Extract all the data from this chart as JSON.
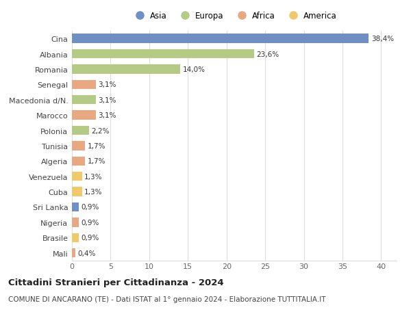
{
  "categories": [
    "Mali",
    "Brasile",
    "Nigeria",
    "Sri Lanka",
    "Cuba",
    "Venezuela",
    "Algeria",
    "Tunisia",
    "Polonia",
    "Marocco",
    "Macedonia d/N.",
    "Senegal",
    "Romania",
    "Albania",
    "Cina"
  ],
  "values": [
    0.4,
    0.9,
    0.9,
    0.9,
    1.3,
    1.3,
    1.7,
    1.7,
    2.2,
    3.1,
    3.1,
    3.1,
    14.0,
    23.6,
    38.4
  ],
  "labels": [
    "0,4%",
    "0,9%",
    "0,9%",
    "0,9%",
    "1,3%",
    "1,3%",
    "1,7%",
    "1,7%",
    "2,2%",
    "3,1%",
    "3,1%",
    "3,1%",
    "14,0%",
    "23,6%",
    "38,4%"
  ],
  "colors": [
    "#e8a882",
    "#f0c96a",
    "#e8a882",
    "#6f8fc7",
    "#f0c96a",
    "#f0c96a",
    "#e8a882",
    "#e8a882",
    "#b5cb85",
    "#e8a882",
    "#b5cb85",
    "#e8a882",
    "#b5cb85",
    "#b5cb85",
    "#6f8fc7"
  ],
  "continent": [
    "Africa",
    "America",
    "Africa",
    "Asia",
    "America",
    "America",
    "Africa",
    "Africa",
    "Europa",
    "Africa",
    "Europa",
    "Africa",
    "Europa",
    "Europa",
    "Asia"
  ],
  "legend": [
    {
      "label": "Asia",
      "color": "#6f8fc7"
    },
    {
      "label": "Europa",
      "color": "#b5cb85"
    },
    {
      "label": "Africa",
      "color": "#e8a882"
    },
    {
      "label": "America",
      "color": "#f0c96a"
    }
  ],
  "title": "Cittadini Stranieri per Cittadinanza - 2024",
  "subtitle": "COMUNE DI ANCARANO (TE) - Dati ISTAT al 1° gennaio 2024 - Elaborazione TUTTITALIA.IT",
  "xlim": [
    0,
    42
  ],
  "xticks": [
    0,
    5,
    10,
    15,
    20,
    25,
    30,
    35,
    40
  ],
  "bg_color": "#ffffff",
  "grid_color": "#dddddd",
  "bar_height": 0.6,
  "title_fontsize": 9.5,
  "subtitle_fontsize": 7.5,
  "label_fontsize": 7.5,
  "tick_fontsize": 8,
  "legend_fontsize": 8.5
}
